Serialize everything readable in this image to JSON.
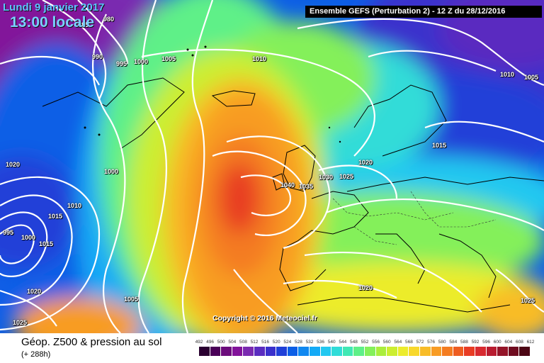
{
  "header": {
    "date": "Lundi 9 janvier 2017",
    "time": "13:00 locale",
    "run_info": "Ensemble GEFS  (Perturbation 2)  -  12 Z du 28/12/2016"
  },
  "copyright": "Copyright © 2016 Meteociel.fr",
  "footer": {
    "field": "Géop. Z500 & pression au sol",
    "lead": "(+ 288h)"
  },
  "legend": {
    "ticks": [
      "492",
      "496",
      "500",
      "504",
      "508",
      "512",
      "516",
      "520",
      "524",
      "528",
      "532",
      "536",
      "540",
      "544",
      "548",
      "552",
      "556",
      "560",
      "564",
      "568",
      "572",
      "576",
      "580",
      "584",
      "588",
      "592",
      "596",
      "600",
      "604",
      "608",
      "612"
    ],
    "colors": [
      "#2a0030",
      "#4a0058",
      "#6c0c7c",
      "#82139a",
      "#7a2ab0",
      "#5a2cc0",
      "#3a30cc",
      "#2040d8",
      "#0c5ee6",
      "#1088f0",
      "#14aaf6",
      "#22c8f0",
      "#30dcd8",
      "#40e8b4",
      "#5ef088",
      "#84f05a",
      "#aaee3c",
      "#ccee30",
      "#ecec2c",
      "#f8d82c",
      "#f8bc28",
      "#f89c24",
      "#f47c20",
      "#ee5c20",
      "#e83c24",
      "#d82a30",
      "#b81c30",
      "#941428",
      "#700c20",
      "#4c0614"
    ]
  },
  "isobars": [
    {
      "label": "985"
    },
    {
      "label": "980"
    },
    {
      "label": "990"
    },
    {
      "label": "995"
    },
    {
      "label": "1000"
    },
    {
      "label": "1005"
    },
    {
      "label": "1010"
    },
    {
      "label": "1010"
    },
    {
      "label": "1005"
    },
    {
      "label": "1015"
    },
    {
      "label": "1020"
    },
    {
      "label": "1000"
    },
    {
      "label": "1010"
    },
    {
      "label": "1015"
    },
    {
      "label": "995"
    },
    {
      "label": "1000"
    },
    {
      "label": "1015"
    },
    {
      "label": "1020"
    },
    {
      "label": "1025"
    },
    {
      "label": "1005"
    },
    {
      "label": "1040"
    },
    {
      "label": "1035"
    },
    {
      "label": "1030"
    },
    {
      "label": "1025"
    },
    {
      "label": "1020"
    },
    {
      "label": "1020"
    },
    {
      "label": "1025"
    },
    {
      "label": "1015"
    }
  ]
}
